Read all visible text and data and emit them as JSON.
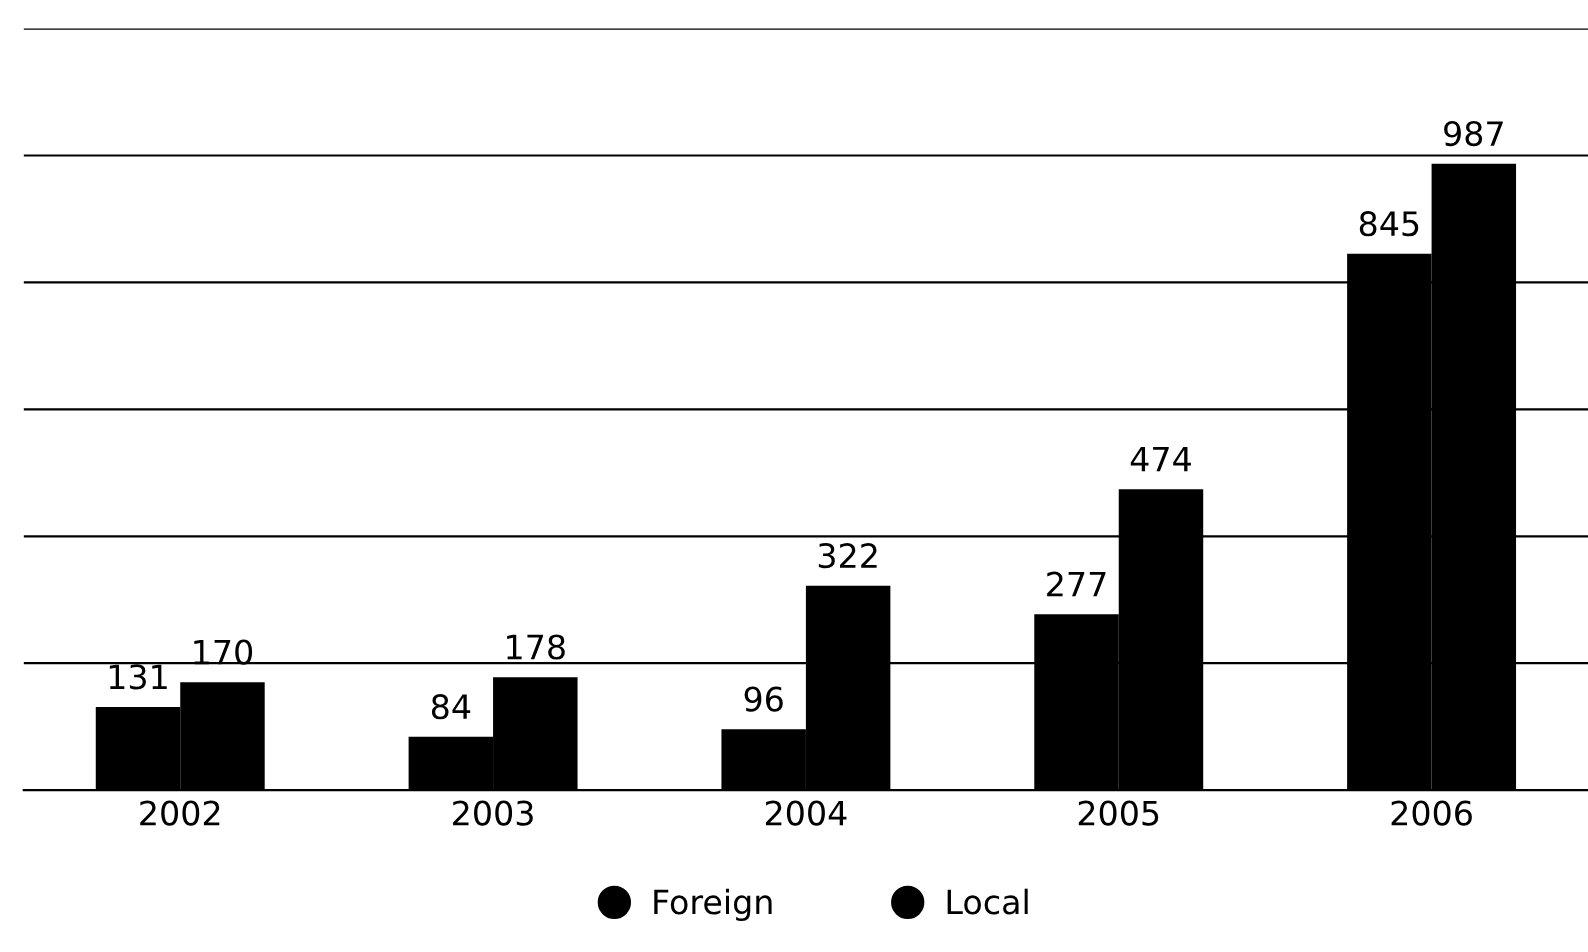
{
  "chart_data": {
    "type": "bar",
    "categories": [
      "2002",
      "2003",
      "2004",
      "2005",
      "2006"
    ],
    "series": [
      {
        "name": "Foreign",
        "color": "#000000",
        "values": [
          131,
          84,
          96,
          277,
          845
        ]
      },
      {
        "name": "Local",
        "color": "#000000",
        "values": [
          170,
          178,
          322,
          474,
          987
        ]
      }
    ],
    "ylim": [
      0,
      1200
    ],
    "yticks": [
      {
        "value": 0,
        "label": null
      },
      {
        "value": 200,
        "label": null
      },
      {
        "value": 400,
        "label": null
      },
      {
        "value": 600,
        "label": null
      },
      {
        "value": 800,
        "label": null
      },
      {
        "value": 1000,
        "label": null
      },
      {
        "value": 1200,
        "label": null
      }
    ],
    "tick_labels": "x",
    "grid": "y",
    "data_labels": true,
    "legend": "bottom"
  }
}
